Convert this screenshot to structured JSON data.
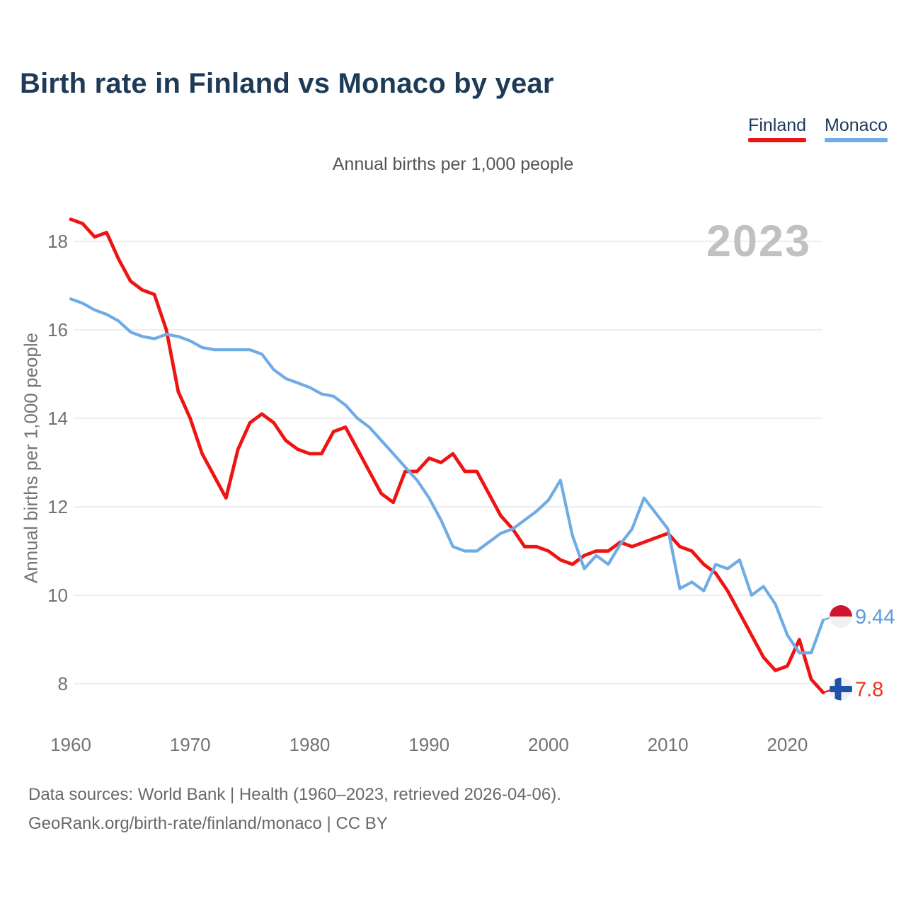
{
  "header": {
    "title": "Birth rate in Finland vs Monaco by year",
    "subtitle": "Annual births per 1,000 people"
  },
  "legend": {
    "items": [
      {
        "label": "Finland",
        "color": "#ee1414"
      },
      {
        "label": "Monaco",
        "color": "#6fabe4"
      }
    ]
  },
  "watermark": "2023",
  "footer": {
    "line1": "Data sources: World Bank | Health (1960–2023, retrieved 2026-04-06).",
    "line2": "GeoRank.org/birth-rate/finland/monaco | CC BY"
  },
  "colors": {
    "finland_line": "#ee1414",
    "monaco_line": "#6fabe4",
    "finland_end_text": "#ee3023",
    "monaco_end_text": "#5b9bd9",
    "monaco_flag_red": "#d0152f",
    "flag_white": "#f1f1f2",
    "finland_cross_blue": "#2052a8",
    "gridline": "#e8e8e8",
    "tick_text": "#737373"
  },
  "chart_data": {
    "type": "line",
    "title": "Birth rate in Finland vs Monaco by year",
    "ylabel": "Annual births per 1,000 people",
    "x_start": 1960,
    "x_step": 1,
    "x_end": 2023,
    "xticks": [
      1960,
      1970,
      1980,
      1990,
      2000,
      2010,
      2020
    ],
    "yticks": [
      18,
      16,
      14,
      12,
      10,
      8
    ],
    "ylim": [
      7.5,
      18.7
    ],
    "grid": "horizontal",
    "legend_position": "top-right",
    "series": [
      {
        "name": "Finland",
        "color": "#ee1414",
        "flag": "finland",
        "end_label": "7.8",
        "end_label_color": "#ee3023",
        "values": [
          18.5,
          18.4,
          18.1,
          18.2,
          17.6,
          17.1,
          16.9,
          16.8,
          16.0,
          14.6,
          14.0,
          13.2,
          12.7,
          12.2,
          13.3,
          13.9,
          14.1,
          13.9,
          13.5,
          13.3,
          13.2,
          13.2,
          13.7,
          13.8,
          13.3,
          12.8,
          12.3,
          12.1,
          12.8,
          12.8,
          13.1,
          13.0,
          13.2,
          12.8,
          12.8,
          12.3,
          11.8,
          11.5,
          11.1,
          11.1,
          11.0,
          10.8,
          10.7,
          10.9,
          11.0,
          11.0,
          11.2,
          11.1,
          11.2,
          11.3,
          11.4,
          11.1,
          11.0,
          10.7,
          10.5,
          10.1,
          9.6,
          9.1,
          8.6,
          8.3,
          8.4,
          9.0,
          8.1,
          7.8
        ]
      },
      {
        "name": "Monaco",
        "color": "#6fabe4",
        "flag": "monaco",
        "end_label": "9.44",
        "end_label_color": "#5b9bd9",
        "values": [
          16.7,
          16.6,
          16.45,
          16.35,
          16.2,
          15.95,
          15.85,
          15.8,
          15.9,
          15.85,
          15.75,
          15.6,
          15.55,
          15.55,
          15.55,
          15.55,
          15.45,
          15.1,
          14.9,
          14.8,
          14.7,
          14.55,
          14.5,
          14.3,
          14.0,
          13.8,
          13.5,
          13.2,
          12.9,
          12.6,
          12.2,
          11.7,
          11.1,
          11.0,
          11.0,
          11.2,
          11.4,
          11.5,
          11.7,
          11.9,
          12.15,
          12.6,
          11.35,
          10.6,
          10.9,
          10.7,
          11.15,
          11.5,
          12.2,
          11.85,
          11.5,
          10.15,
          10.3,
          10.1,
          10.7,
          10.6,
          10.8,
          10.0,
          10.2,
          9.8,
          9.1,
          8.7,
          8.7,
          9.44
        ]
      }
    ]
  }
}
